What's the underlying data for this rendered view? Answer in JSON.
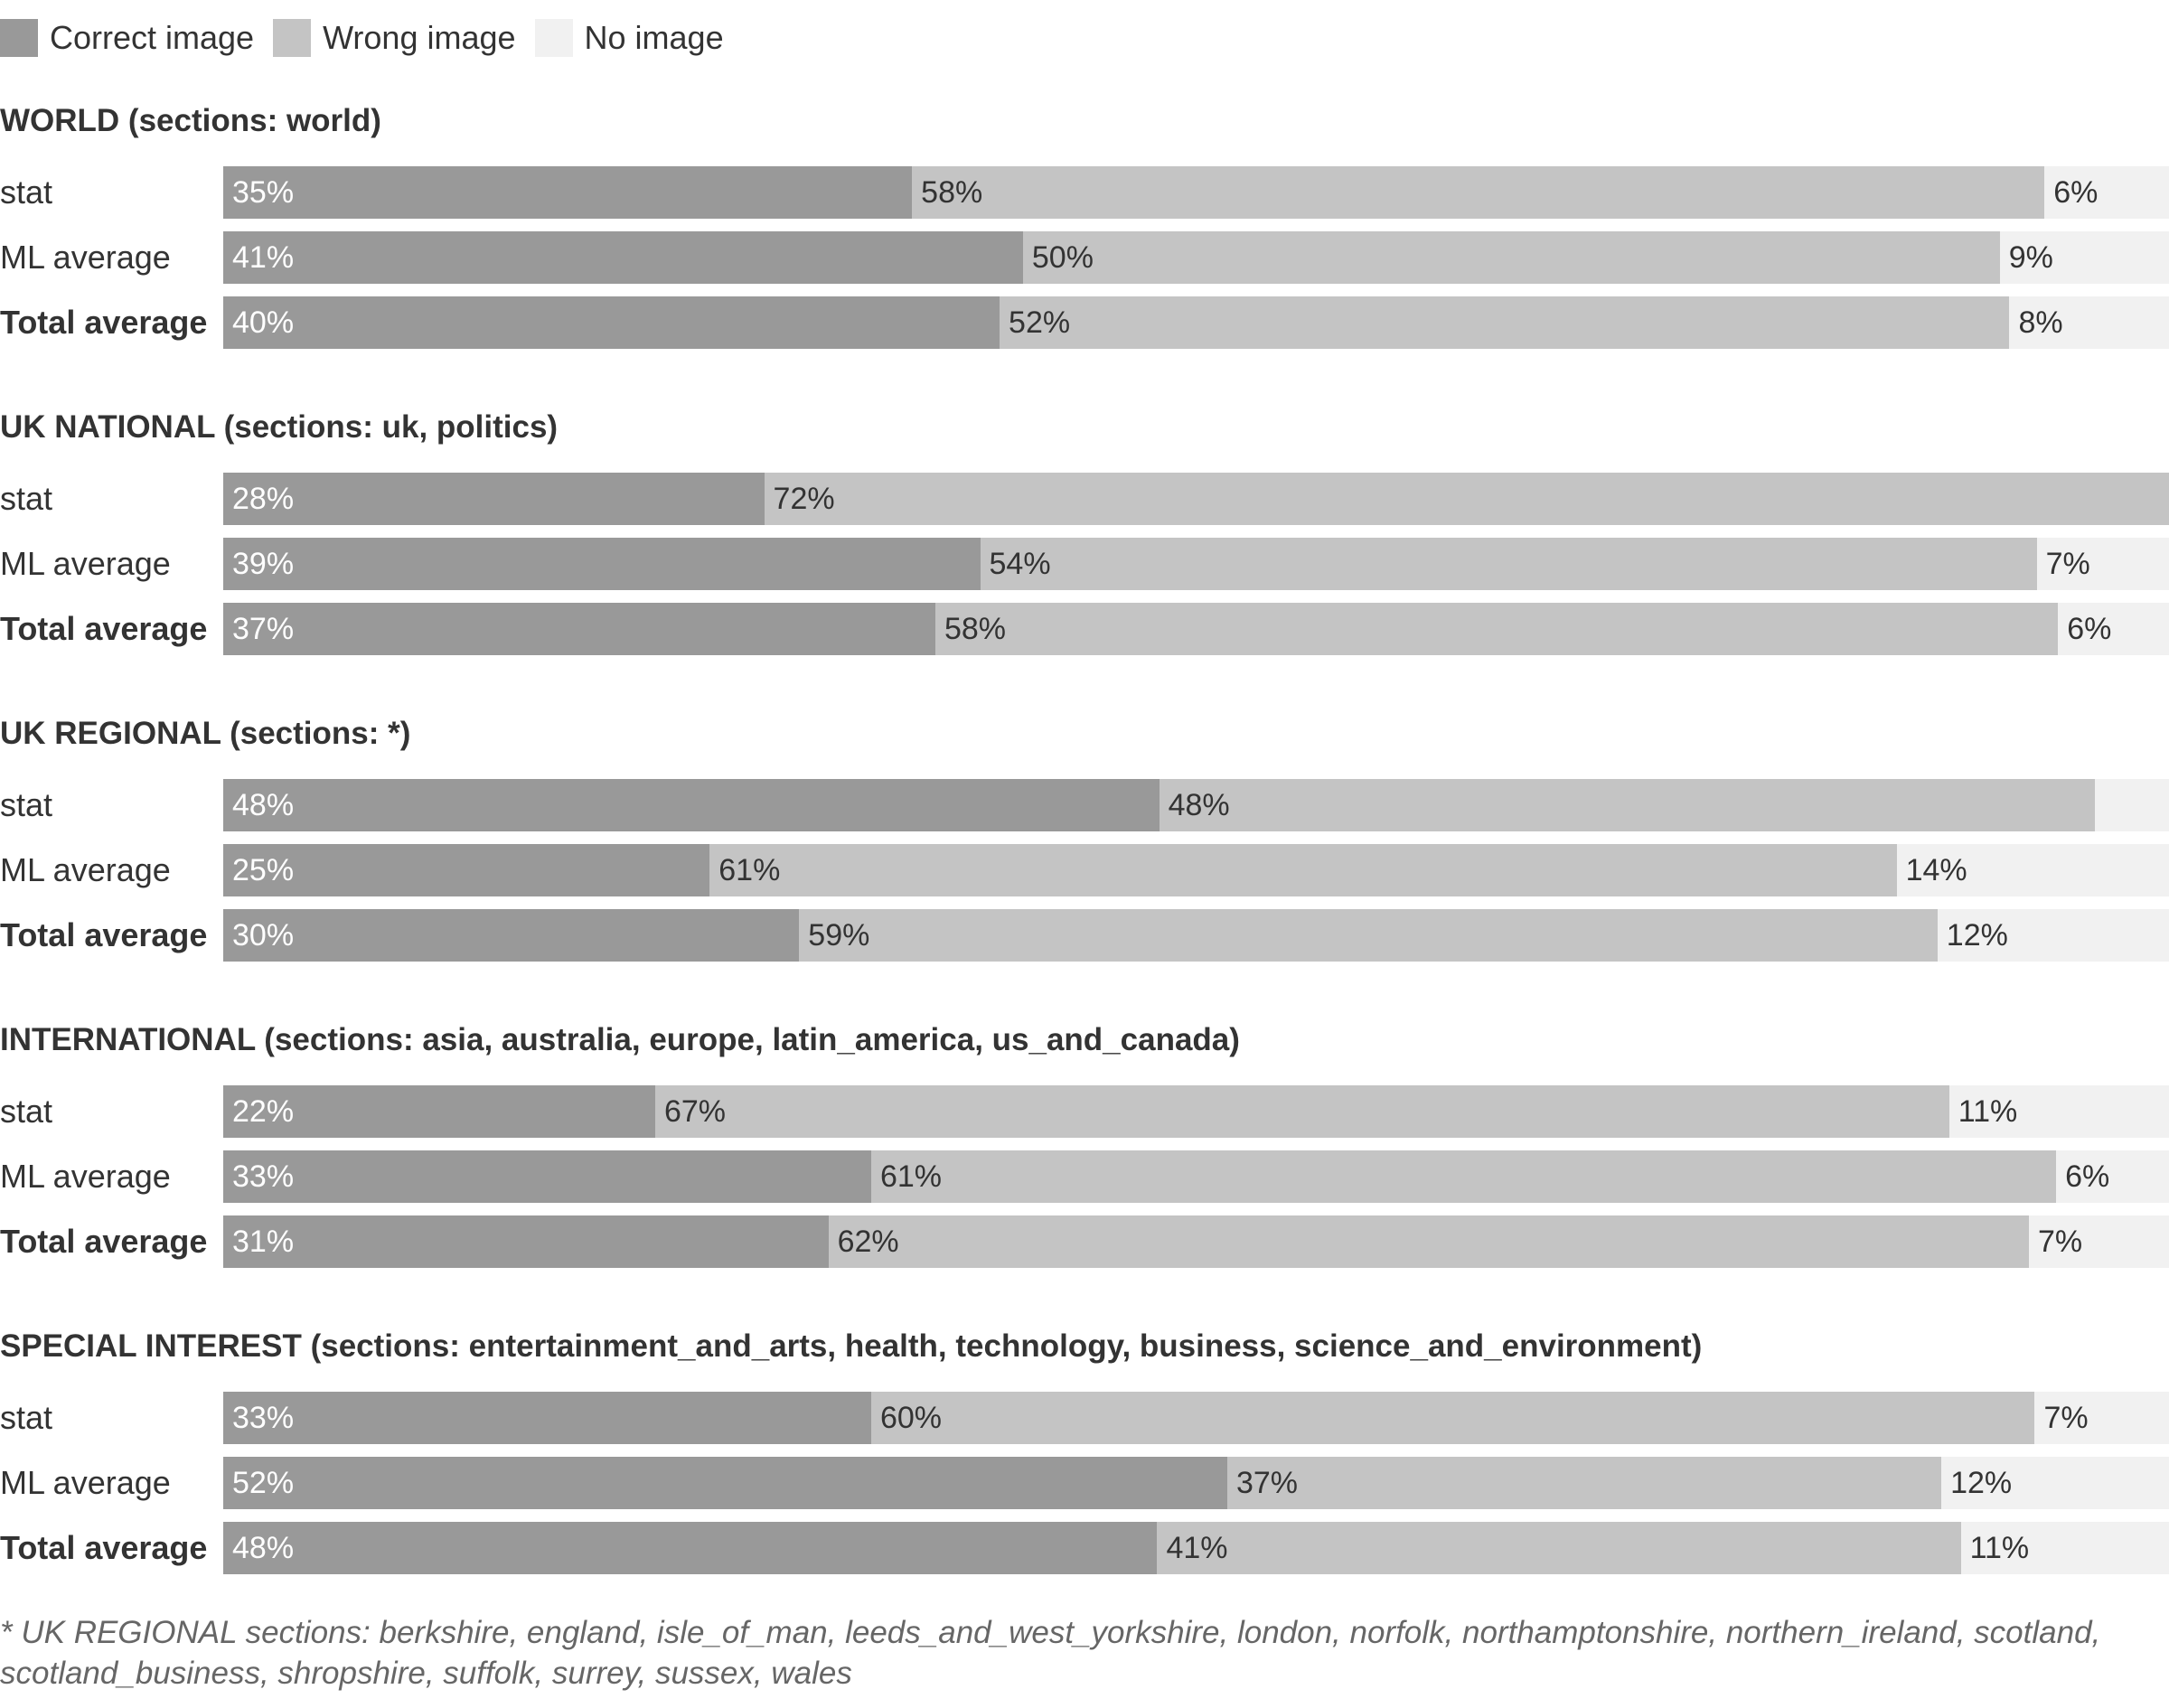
{
  "chart_data": {
    "type": "bar",
    "orientation": "horizontal",
    "stacked": true,
    "normalized_to": 100,
    "legend": {
      "placement": "top-left",
      "entries": [
        {
          "key": "correct",
          "label": "Correct image",
          "color": "#999999"
        },
        {
          "key": "wrong",
          "label": "Wrong image",
          "color": "#c4c4c4"
        },
        {
          "key": "none",
          "label": "No image",
          "color": "#f1f1f1"
        }
      ]
    },
    "groups": [
      {
        "title": "WORLD (sections: world)",
        "rows": [
          {
            "label": "stat",
            "bold": false,
            "correct": 35.4,
            "wrong": 58.2,
            "none": 6.4,
            "labels": [
              "35%",
              "58%",
              "6%"
            ]
          },
          {
            "label": "ML average",
            "bold": false,
            "correct": 41.1,
            "wrong": 50.2,
            "none": 8.7,
            "labels": [
              "41%",
              "50%",
              "9%"
            ]
          },
          {
            "label": "Total average",
            "bold": true,
            "correct": 39.9,
            "wrong": 51.9,
            "none": 8.2,
            "labels": [
              "40%",
              "52%",
              "8%"
            ]
          }
        ]
      },
      {
        "title": "UK NATIONAL (sections: uk, politics)",
        "rows": [
          {
            "label": "stat",
            "bold": false,
            "correct": 27.8,
            "wrong": 72.2,
            "none": 0,
            "labels": [
              "28%",
              "72%",
              ""
            ]
          },
          {
            "label": "ML average",
            "bold": false,
            "correct": 38.9,
            "wrong": 54.3,
            "none": 6.8,
            "labels": [
              "39%",
              "54%",
              "7%"
            ]
          },
          {
            "label": "Total average",
            "bold": true,
            "correct": 36.6,
            "wrong": 57.7,
            "none": 5.7,
            "labels": [
              "37%",
              "58%",
              "6%"
            ]
          }
        ]
      },
      {
        "title": "UK REGIONAL (sections: *)",
        "rows": [
          {
            "label": "stat",
            "bold": false,
            "correct": 48.1,
            "wrong": 48.1,
            "none": 3.8,
            "labels": [
              "48%",
              "48%",
              ""
            ]
          },
          {
            "label": "ML average",
            "bold": false,
            "correct": 25.0,
            "wrong": 61.0,
            "none": 14.0,
            "labels": [
              "25%",
              "61%",
              "14%"
            ]
          },
          {
            "label": "Total average",
            "bold": true,
            "correct": 29.6,
            "wrong": 58.5,
            "none": 11.9,
            "labels": [
              "30%",
              "59%",
              "12%"
            ]
          }
        ]
      },
      {
        "title": "INTERNATIONAL (sections: asia, australia, europe, latin_america, us_and_canada)",
        "rows": [
          {
            "label": "stat",
            "bold": false,
            "correct": 22.2,
            "wrong": 66.5,
            "none": 11.3,
            "labels": [
              "22%",
              "67%",
              "11%"
            ]
          },
          {
            "label": "ML average",
            "bold": false,
            "correct": 33.3,
            "wrong": 60.9,
            "none": 5.8,
            "labels": [
              "33%",
              "61%",
              "6%"
            ]
          },
          {
            "label": "Total average",
            "bold": true,
            "correct": 31.1,
            "wrong": 61.7,
            "none": 7.2,
            "labels": [
              "31%",
              "62%",
              "7%"
            ]
          }
        ]
      },
      {
        "title": "SPECIAL INTEREST (sections: entertainment_and_arts, health, technology, business, science_and_environment)",
        "rows": [
          {
            "label": "stat",
            "bold": false,
            "correct": 33.3,
            "wrong": 59.8,
            "none": 6.9,
            "labels": [
              "33%",
              "60%",
              "7%"
            ]
          },
          {
            "label": "ML average",
            "bold": false,
            "correct": 51.6,
            "wrong": 36.7,
            "none": 11.7,
            "labels": [
              "52%",
              "37%",
              "12%"
            ]
          },
          {
            "label": "Total average",
            "bold": true,
            "correct": 48.0,
            "wrong": 41.3,
            "none": 10.7,
            "labels": [
              "48%",
              "41%",
              "11%"
            ]
          }
        ]
      }
    ],
    "footnote": "* UK REGIONAL sections: berkshire, england, isle_of_man, leeds_and_west_yorkshire, london, norfolk, northamptonshire, northern_ireland, scotland, scotland_business, shropshire, suffolk, surrey, sussex, wales",
    "xlim": [
      0,
      100
    ],
    "grid": false
  }
}
